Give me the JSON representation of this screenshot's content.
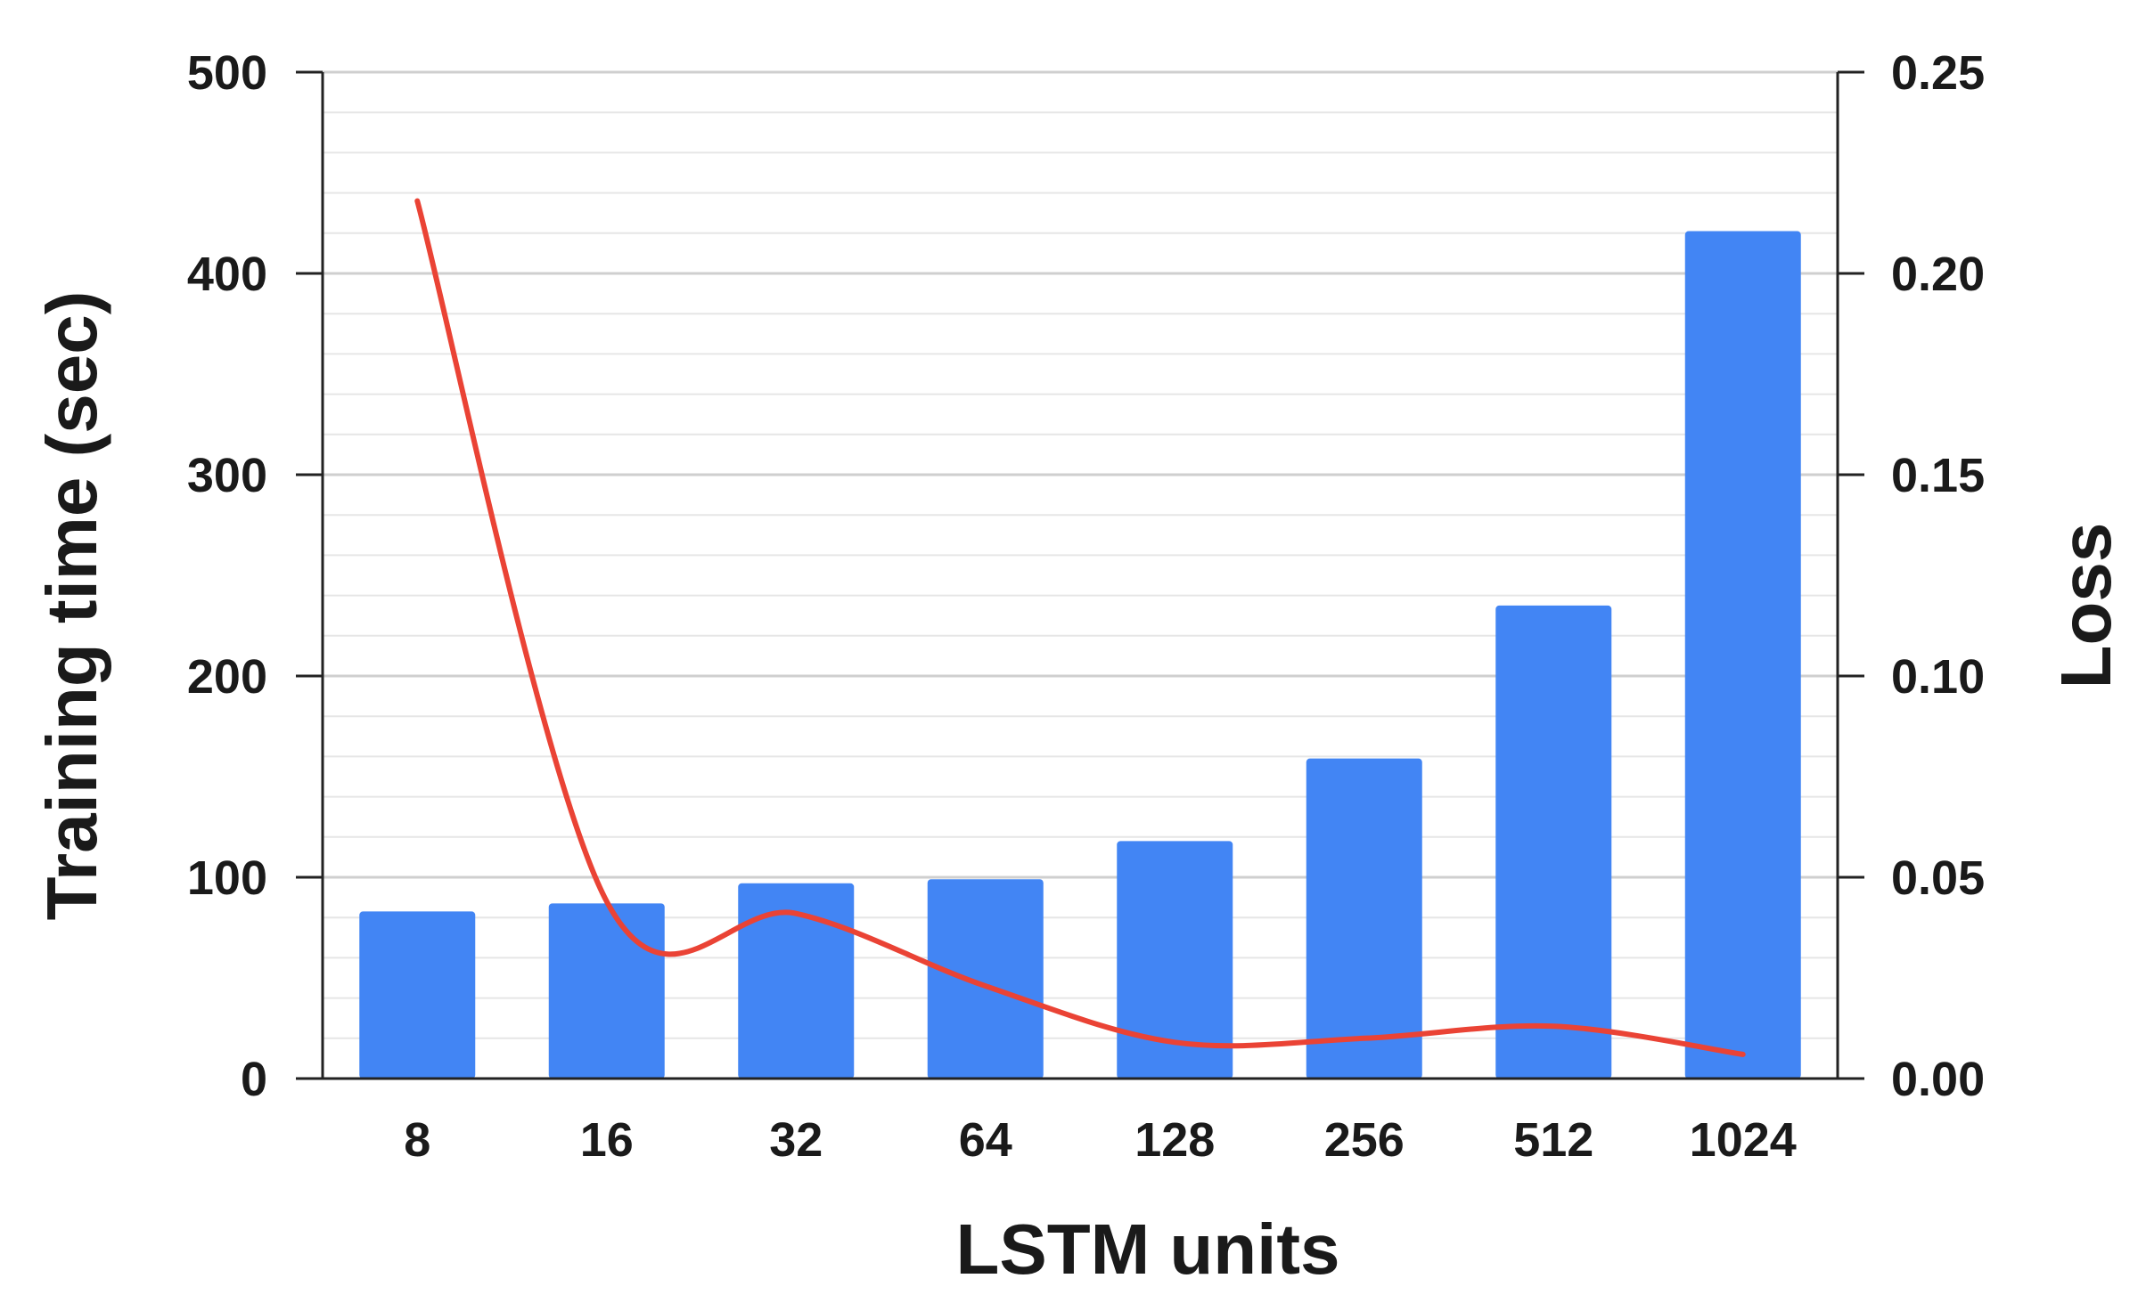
{
  "chart_data": {
    "type": "bar+line",
    "title": "",
    "categories": [
      "8",
      "16",
      "32",
      "64",
      "128",
      "256",
      "512",
      "1024"
    ],
    "series": [
      {
        "type": "bar",
        "axis": "left",
        "color": "#4285F4",
        "values": [
          83,
          87,
          97,
          99,
          118,
          159,
          235,
          421
        ]
      },
      {
        "type": "line",
        "axis": "right",
        "color": "#EA4335",
        "smooth": true,
        "values": [
          0.218,
          0.044,
          0.041,
          0.023,
          0.009,
          0.01,
          0.013,
          0.006
        ]
      }
    ],
    "xlabel": "LSTM units",
    "ylabel": "Training time (sec)",
    "y2label": "Loss",
    "ylim": [
      0,
      500
    ],
    "y2lim": [
      0,
      0.25
    ],
    "yticks": [
      "0",
      "100",
      "200",
      "300",
      "400",
      "500"
    ],
    "y2ticks": [
      "0.00",
      "0.05",
      "0.10",
      "0.15",
      "0.20",
      "0.25"
    ],
    "grid": true,
    "minor_grid": true,
    "legend": "none"
  }
}
